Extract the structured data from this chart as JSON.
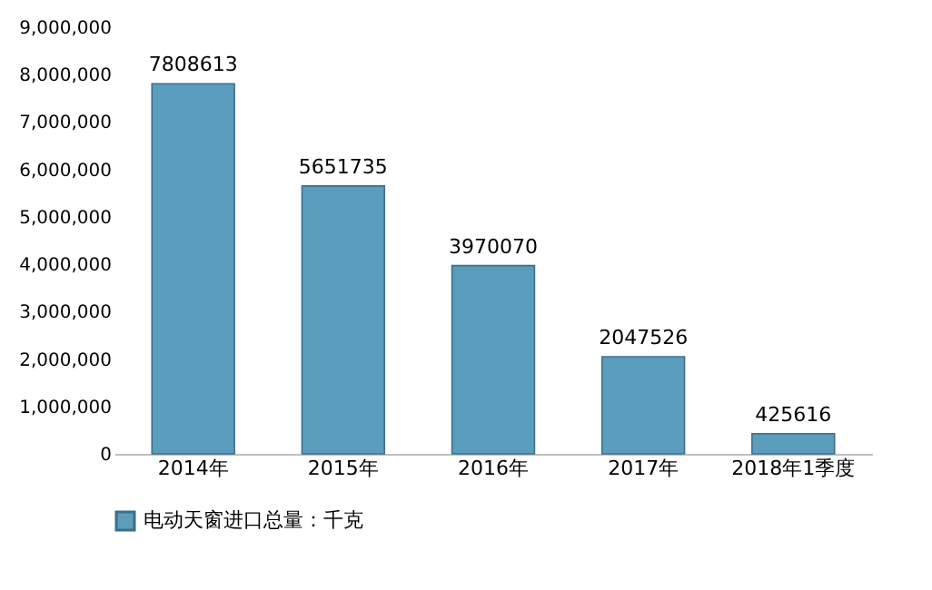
{
  "chart_data": {
    "type": "bar",
    "categories": [
      "2014年",
      "2015年",
      "2016年",
      "2017年",
      "2018年1季度"
    ],
    "series": [
      {
        "name": "电动天窗进口总量：千克",
        "color": "#5b9dbd",
        "values": [
          7808613,
          5651735,
          3970070,
          2047526,
          425616
        ]
      }
    ],
    "ylim": [
      0,
      9000000
    ],
    "yticks": [
      {
        "value": 0,
        "label": "0"
      },
      {
        "value": 1000000,
        "label": "1,000,000"
      },
      {
        "value": 2000000,
        "label": "2,000,000"
      },
      {
        "value": 3000000,
        "label": "3,000,000"
      },
      {
        "value": 4000000,
        "label": "4,000,000"
      },
      {
        "value": 5000000,
        "label": "5,000,000"
      },
      {
        "value": 6000000,
        "label": "6,000,000"
      },
      {
        "value": 7000000,
        "label": "7,000,000"
      },
      {
        "value": 8000000,
        "label": "8,000,000"
      },
      {
        "value": 9000000,
        "label": "9,000,000"
      }
    ],
    "data_labels": true,
    "grid": false,
    "legend": "bottom"
  }
}
